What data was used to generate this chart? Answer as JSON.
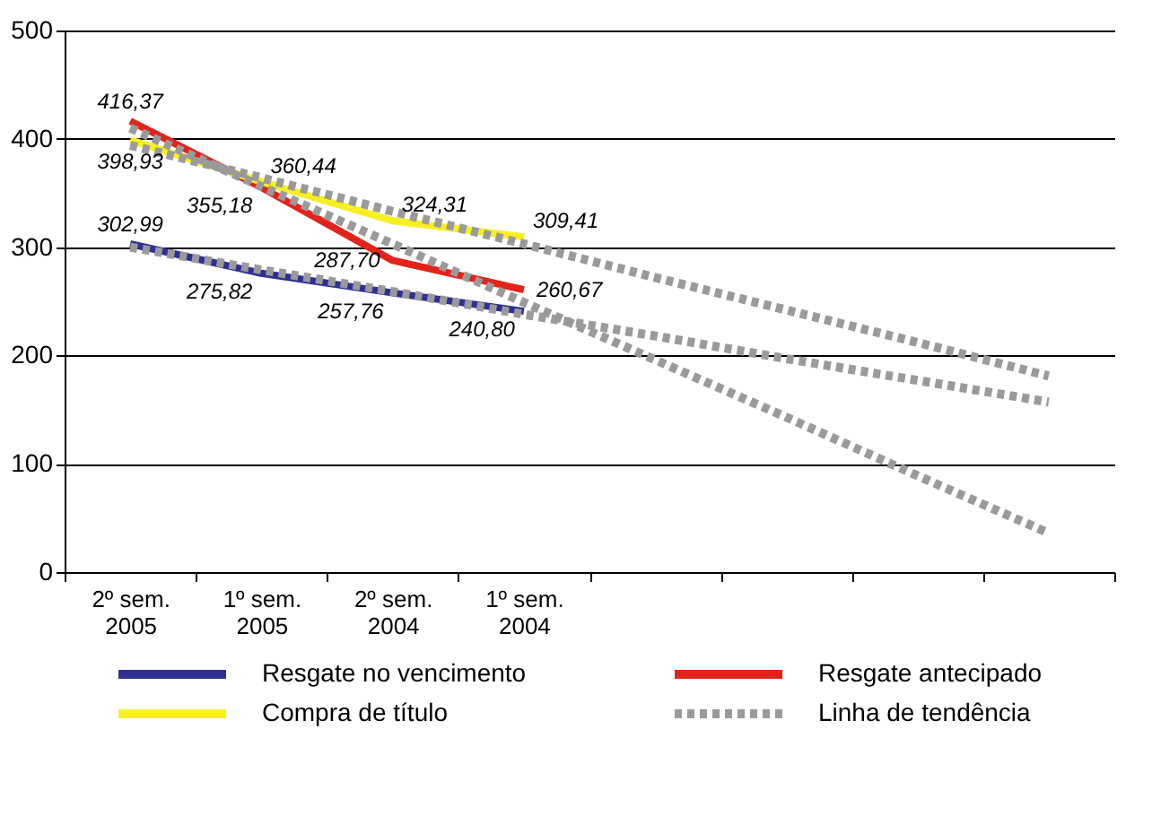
{
  "chart_data": {
    "type": "line",
    "categories": [
      "2º sem.\n2005",
      "1º sem.\n2005",
      "2º sem.\n2004",
      "1º sem.\n2004",
      null,
      null,
      null,
      null
    ],
    "ylim": [
      0,
      500
    ],
    "yticks": [
      0,
      100,
      200,
      300,
      400,
      500
    ],
    "grid": "y",
    "legend": "bottom",
    "marker": "none",
    "series": [
      {
        "name": "Resgate no vencimento",
        "color": "#2e3192",
        "line_style": "solid",
        "values": [
          302.99,
          275.82,
          257.76,
          240.8,
          null,
          null,
          null,
          null
        ],
        "value_labels": [
          "302,99",
          "275,82",
          "257,76",
          "240,80",
          null,
          null,
          null,
          null
        ]
      },
      {
        "name": "Resgate antecipado",
        "color": "#e2231a",
        "line_style": "solid",
        "values": [
          416.37,
          355.18,
          287.7,
          260.67,
          null,
          null,
          null,
          null
        ],
        "value_labels": [
          "416,37",
          "355,18",
          "287,70",
          "260,67",
          null,
          null,
          null,
          null
        ]
      },
      {
        "name": "Compra de título",
        "color": "#f7ef22",
        "line_style": "solid",
        "values": [
          398.93,
          360.44,
          324.31,
          309.41,
          null,
          null,
          null,
          null
        ],
        "value_labels": [
          "398,93",
          "360,44",
          "324,31",
          "309,41",
          null,
          null,
          null,
          null
        ]
      },
      {
        "name": "Linha de tendência",
        "color": "#9a9a9a",
        "line_style": "dotted",
        "values": [
          394,
          364,
          333,
          303,
          272,
          242,
          212,
          181
        ]
      },
      {
        "color": "#9a9a9a",
        "line_style": "dotted",
        "values": [
          300,
          279,
          259,
          238,
          218,
          197,
          177,
          157
        ]
      },
      {
        "color": "#9a9a9a",
        "line_style": "dotted",
        "values": [
          410,
          356,
          303,
          249,
          196,
          143,
          89,
          36
        ]
      }
    ]
  }
}
